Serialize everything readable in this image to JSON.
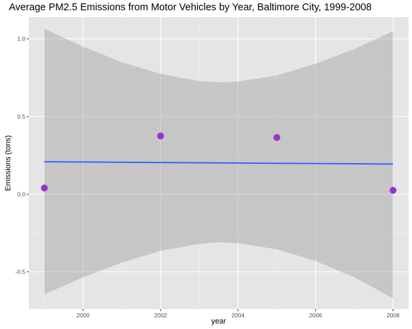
{
  "chart_data": {
    "type": "scatter",
    "title": "Average PM2.5 Emissions from Motor Vehicles by Year, Baltimore City, 1999-2008",
    "xlabel": "year",
    "ylabel": "Emissions (tons)",
    "xlim": [
      1998.6,
      2008.4
    ],
    "ylim": [
      -0.74,
      1.14
    ],
    "x_ticks": [
      2000,
      2002,
      2004,
      2006,
      2008
    ],
    "x_tick_labels": [
      "2000",
      "2002",
      "2004",
      "2006",
      "2008"
    ],
    "y_ticks": [
      -0.5,
      0.0,
      0.5,
      1.0
    ],
    "y_tick_labels": [
      "-0.5",
      "0.0",
      "0.5",
      "1.0"
    ],
    "grid": true,
    "points": {
      "x": [
        1999,
        2002,
        2005,
        2008
      ],
      "y": [
        0.04,
        0.375,
        0.365,
        0.025
      ],
      "color": "#9933cc"
    },
    "fit_line": {
      "method": "linear",
      "color": "#3366ff",
      "x": [
        1999,
        2008
      ],
      "y": [
        0.209,
        0.194
      ]
    },
    "confidence_band": {
      "color": "#999999",
      "x": [
        1999,
        2000,
        2001,
        2002,
        2003,
        2003.5,
        2004,
        2005,
        2006,
        2007,
        2008
      ],
      "lower": [
        -0.645,
        -0.535,
        -0.44,
        -0.365,
        -0.32,
        -0.31,
        -0.315,
        -0.355,
        -0.43,
        -0.535,
        -0.67
      ],
      "upper": [
        1.065,
        0.95,
        0.85,
        0.775,
        0.728,
        0.72,
        0.725,
        0.765,
        0.84,
        0.935,
        1.05
      ]
    }
  },
  "colors": {
    "panel_background": "#e5e5e5",
    "grid_major": "#ffffff",
    "grid_minor": "#f2f2f2",
    "tick_label": "#4d4d4d"
  }
}
